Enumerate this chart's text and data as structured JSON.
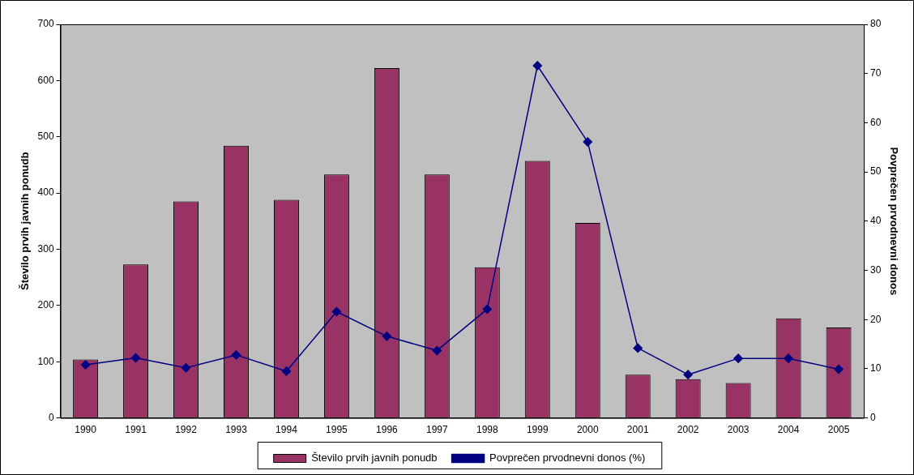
{
  "chart_data": {
    "type": "bar",
    "categories": [
      "1990",
      "1991",
      "1992",
      "1993",
      "1994",
      "1995",
      "1996",
      "1997",
      "1998",
      "1999",
      "2000",
      "2001",
      "2002",
      "2003",
      "2004",
      "2005"
    ],
    "ylabel": "Število prvih javnih ponudb",
    "y2label": "Povprečen prvodnevni donos",
    "ylim": [
      0,
      700
    ],
    "yticks": [
      0,
      100,
      200,
      300,
      400,
      500,
      600,
      700
    ],
    "y2lim": [
      0,
      80
    ],
    "y2ticks": [
      0,
      10,
      20,
      30,
      40,
      50,
      60,
      70,
      80
    ],
    "grid": false,
    "legend": "bottom",
    "series": [
      {
        "name": "Število prvih javnih ponudb",
        "color": "#993366",
        "values": [
          104,
          273,
          385,
          484,
          388,
          433,
          622,
          433,
          268,
          457,
          347,
          77,
          69,
          62,
          177,
          161
        ]
      },
      {
        "name": "Povprečen prvodnevni donos (%)",
        "type": "line",
        "axis": "y2",
        "color": "#000080",
        "marker": "diamond",
        "values": [
          10.8,
          12.2,
          10.2,
          12.8,
          9.5,
          21.6,
          16.6,
          13.7,
          22.1,
          71.6,
          56.1,
          14.2,
          8.8,
          12.1,
          12.1,
          9.9
        ]
      }
    ]
  }
}
